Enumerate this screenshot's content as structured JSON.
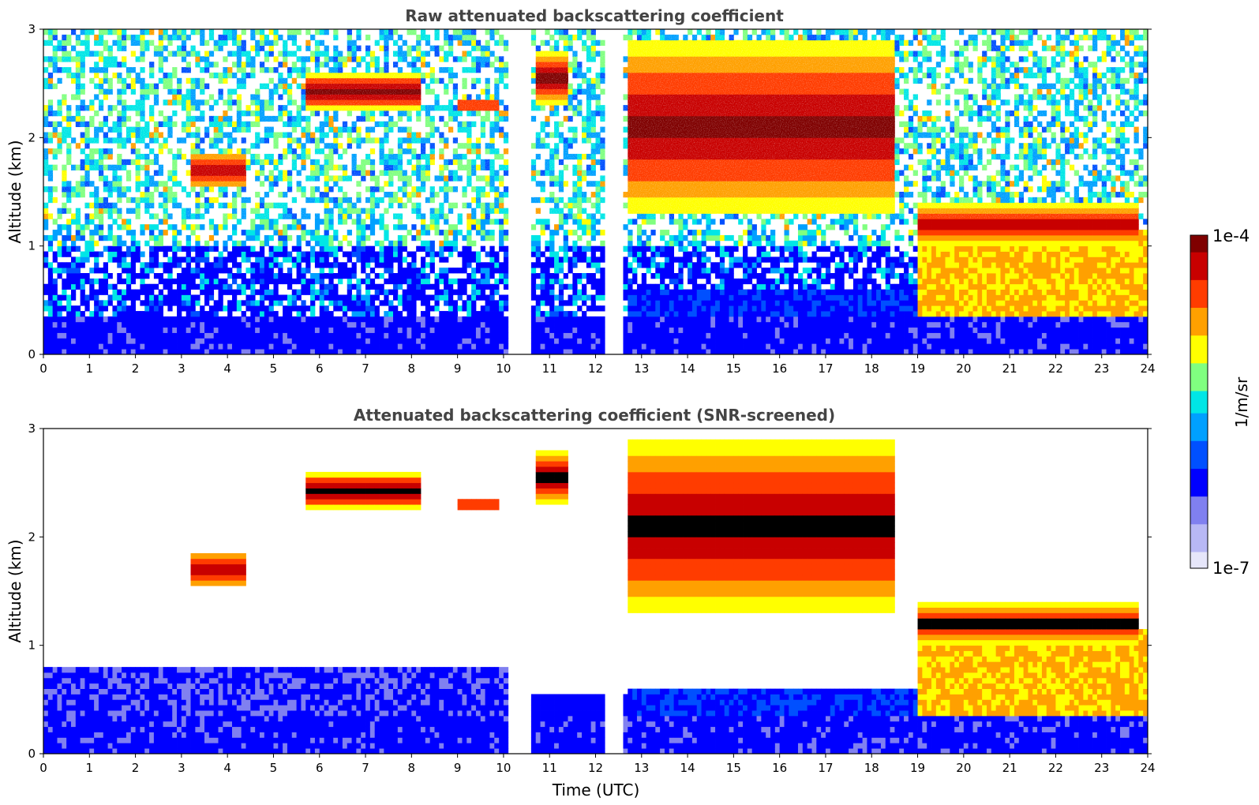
{
  "chart_data": [
    {
      "type": "heatmap",
      "title": "Raw attenuated backscattering coefficient",
      "xlabel": "",
      "ylabel": "Altitude (km)",
      "xlim": [
        0,
        24
      ],
      "ylim": [
        0,
        3
      ],
      "x_ticks": [
        "0",
        "1",
        "2",
        "3",
        "4",
        "5",
        "6",
        "7",
        "8",
        "9",
        "10",
        "11",
        "12",
        "13",
        "14",
        "15",
        "16",
        "17",
        "18",
        "19",
        "20",
        "21",
        "22",
        "23",
        "24"
      ],
      "y_ticks": [
        "0",
        "1",
        "2",
        "3"
      ],
      "data_gaps_hours": [
        [
          10.15,
          10.6
        ],
        [
          12.25,
          12.6
        ]
      ],
      "cloud_layers": [
        {
          "start_h": 3.2,
          "end_h": 4.4,
          "alt_km": [
            1.55,
            1.85
          ]
        },
        {
          "start_h": 5.7,
          "end_h": 8.2,
          "alt_km": [
            2.25,
            2.6
          ]
        },
        {
          "start_h": 9.0,
          "end_h": 9.9,
          "alt_km": [
            2.25,
            2.35
          ]
        },
        {
          "start_h": 10.7,
          "end_h": 11.4,
          "alt_km": [
            2.3,
            2.8
          ]
        },
        {
          "start_h": 12.7,
          "end_h": 18.5,
          "alt_km": [
            1.3,
            2.9
          ]
        },
        {
          "start_h": 19.0,
          "end_h": 23.8,
          "alt_km": [
            1.0,
            1.4
          ]
        }
      ]
    },
    {
      "type": "heatmap",
      "title": "Attenuated backscattering coefficient (SNR-screened)",
      "xlabel": "Time (UTC)",
      "ylabel": "Altitude (km)",
      "xlim": [
        0,
        24
      ],
      "ylim": [
        0,
        3
      ],
      "x_ticks": [
        "0",
        "1",
        "2",
        "3",
        "4",
        "5",
        "6",
        "7",
        "8",
        "9",
        "10",
        "11",
        "12",
        "13",
        "14",
        "15",
        "16",
        "17",
        "18",
        "19",
        "20",
        "21",
        "22",
        "23",
        "24"
      ],
      "y_ticks": [
        "0",
        "1",
        "2",
        "3"
      ],
      "data_gaps_hours": [
        [
          10.15,
          10.6
        ],
        [
          12.25,
          12.6
        ]
      ]
    }
  ],
  "colorbar": {
    "label": "1/m/sr",
    "min_label": "1e-7",
    "max_label": "1e-4",
    "scale": "log",
    "range": [
      1e-07,
      0.0001
    ],
    "colormap": [
      "#e6e6fa",
      "#b8b8f5",
      "#8080f0",
      "#0000ff",
      "#0050ff",
      "#00a0ff",
      "#00e6e6",
      "#80ff80",
      "#ffff00",
      "#ffa000",
      "#ff3c00",
      "#c80000",
      "#7f0000"
    ]
  }
}
